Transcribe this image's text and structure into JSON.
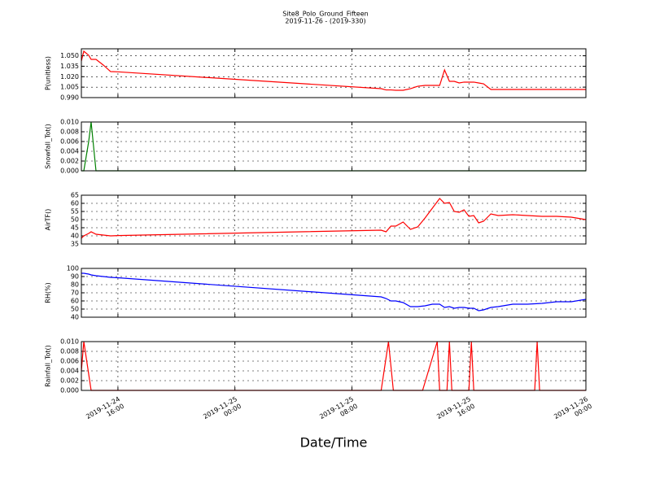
{
  "chart_data": [
    {
      "type": "line",
      "title": "Site8_Polo_Ground_Fifteen",
      "subtitle": "2019-11-26 - (2019-330)",
      "ylabel": "P(unitless)",
      "color": "#ff0000",
      "grid": true,
      "x": [
        "2019-11-24 13:30",
        "2019-11-24 13:40",
        "2019-11-24 14:00",
        "2019-11-24 14:10",
        "2019-11-24 14:30",
        "2019-11-24 15:00",
        "2019-11-24 15:30",
        "2019-11-24 16:00",
        "2019-11-25 10:00",
        "2019-11-25 10:20",
        "2019-11-25 10:40",
        "2019-11-25 11:00",
        "2019-11-25 11:30",
        "2019-11-25 12:00",
        "2019-11-25 12:30",
        "2019-11-25 13:00",
        "2019-11-25 13:30",
        "2019-11-25 14:00",
        "2019-11-25 14:20",
        "2019-11-25 14:40",
        "2019-11-25 15:00",
        "2019-11-25 15:20",
        "2019-11-25 15:40",
        "2019-11-25 16:00",
        "2019-11-25 16:20",
        "2019-11-25 16:40",
        "2019-11-25 17:00",
        "2019-11-25 17:30",
        "2019-11-25 18:00",
        "2019-11-25 19:00",
        "2019-11-25 20:00",
        "2019-11-25 21:00",
        "2019-11-25 22:00",
        "2019-11-25 23:00",
        "2019-11-26 00:00"
      ],
      "values": [
        1.0425,
        1.0565,
        1.0507,
        1.0448,
        1.0448,
        1.0367,
        1.0273,
        1.027,
        1.0028,
        1.001,
        1.001,
        1.0005,
        1.0005,
        1.0028,
        1.0063,
        1.0075,
        1.0075,
        1.0075,
        1.0297,
        1.0133,
        1.0133,
        1.011,
        1.0122,
        1.0122,
        1.0122,
        1.011,
        1.0098,
        1.0017,
        1.0017,
        1.0017,
        1.0017,
        1.0017,
        1.0017,
        1.0017,
        1.0017
      ],
      "xlim": [
        "2019-11-24 13:30",
        "2019-11-26 00:00"
      ],
      "xticks": [
        "2019-11-24 16:00",
        "2019-11-25 00:00",
        "2019-11-25 08:00",
        "2019-11-25 16:00",
        "2019-11-26 00:00"
      ],
      "ylim": [
        0.99,
        1.06
      ],
      "yticks": [
        {
          "value": 0.99,
          "label": "0.990"
        },
        1.005,
        {
          "value": 1.02,
          "label": "1.020"
        },
        1.035,
        {
          "value": 1.05,
          "label": "1.050"
        }
      ]
    },
    {
      "type": "line",
      "ylabel": "Snowfall_Tot()",
      "color": "#008000",
      "grid": true,
      "x": [
        "2019-11-24 13:30",
        "2019-11-24 13:40",
        "2019-11-24 14:00",
        "2019-11-24 14:10",
        "2019-11-24 14:30",
        "2019-11-24 15:00",
        "2019-11-24 16:00",
        "2019-11-25 12:00",
        "2019-11-26 00:00"
      ],
      "values": [
        0,
        0,
        0.006,
        0.01,
        0,
        0,
        0,
        0,
        0
      ],
      "xlim": [
        "2019-11-24 13:30",
        "2019-11-26 00:00"
      ],
      "xticks": [
        "2019-11-24 16:00",
        "2019-11-25 00:00",
        "2019-11-25 08:00",
        "2019-11-25 16:00",
        "2019-11-26 00:00"
      ],
      "ylim": [
        0,
        0.01
      ],
      "yticks": [
        {
          "value": 0,
          "label": "0.000"
        },
        0.002,
        0.004,
        0.006,
        0.008,
        {
          "value": 0.01,
          "label": "0.010"
        }
      ]
    },
    {
      "type": "line",
      "ylabel": "AirTF()",
      "color": "#ff0000",
      "grid": true,
      "x": [
        "2019-11-24 13:30",
        "2019-11-24 13:40",
        "2019-11-24 14:00",
        "2019-11-24 14:10",
        "2019-11-24 14:30",
        "2019-11-24 15:00",
        "2019-11-24 15:30",
        "2019-11-24 16:00",
        "2019-11-25 10:00",
        "2019-11-25 10:20",
        "2019-11-25 10:40",
        "2019-11-25 11:00",
        "2019-11-25 11:30",
        "2019-11-25 12:00",
        "2019-11-25 12:30",
        "2019-11-25 13:00",
        "2019-11-25 13:30",
        "2019-11-25 14:00",
        "2019-11-25 14:20",
        "2019-11-25 14:40",
        "2019-11-25 15:00",
        "2019-11-25 15:20",
        "2019-11-25 15:40",
        "2019-11-25 16:00",
        "2019-11-25 16:20",
        "2019-11-25 16:40",
        "2019-11-25 17:00",
        "2019-11-25 17:30",
        "2019-11-25 18:00",
        "2019-11-25 19:00",
        "2019-11-25 20:00",
        "2019-11-25 21:00",
        "2019-11-25 22:00",
        "2019-11-25 23:00",
        "2019-11-26 00:00"
      ],
      "values": [
        38.5,
        40,
        41.5,
        42.5,
        41,
        40.5,
        40,
        40.2,
        43.5,
        42.5,
        46,
        46,
        48.5,
        44,
        45.5,
        51,
        57,
        63,
        60,
        60.5,
        55,
        54.5,
        56,
        52,
        52.5,
        48,
        49,
        53.5,
        52.5,
        53,
        52.5,
        52,
        52,
        51.5,
        50
      ],
      "xlim": [
        "2019-11-24 13:30",
        "2019-11-26 00:00"
      ],
      "xticks": [
        "2019-11-24 16:00",
        "2019-11-25 00:00",
        "2019-11-25 08:00",
        "2019-11-25 16:00",
        "2019-11-26 00:00"
      ],
      "ylim": [
        35,
        65
      ],
      "yticks": [
        35,
        40,
        45,
        50,
        55,
        60,
        65
      ]
    },
    {
      "type": "line",
      "ylabel": "RH(%)",
      "color": "#0000ff",
      "grid": true,
      "x": [
        "2019-11-24 13:30",
        "2019-11-24 13:40",
        "2019-11-24 14:00",
        "2019-11-24 14:10",
        "2019-11-24 14:30",
        "2019-11-24 15:00",
        "2019-11-24 15:30",
        "2019-11-24 16:00",
        "2019-11-25 10:00",
        "2019-11-25 10:20",
        "2019-11-25 10:40",
        "2019-11-25 11:00",
        "2019-11-25 11:30",
        "2019-11-25 12:00",
        "2019-11-25 12:30",
        "2019-11-25 13:00",
        "2019-11-25 13:30",
        "2019-11-25 14:00",
        "2019-11-25 14:20",
        "2019-11-25 14:40",
        "2019-11-25 15:00",
        "2019-11-25 15:20",
        "2019-11-25 15:40",
        "2019-11-25 16:00",
        "2019-11-25 16:20",
        "2019-11-25 16:40",
        "2019-11-25 17:00",
        "2019-11-25 17:30",
        "2019-11-25 18:00",
        "2019-11-25 19:00",
        "2019-11-25 20:00",
        "2019-11-25 21:00",
        "2019-11-25 22:00",
        "2019-11-25 23:00",
        "2019-11-26 00:00"
      ],
      "values": [
        94,
        94,
        93,
        92,
        91,
        90,
        89,
        88.5,
        65,
        63,
        60,
        60,
        58,
        53,
        53,
        54,
        56,
        56,
        52,
        53,
        51,
        52,
        52,
        51,
        51,
        48,
        49,
        52,
        53,
        56,
        56,
        57,
        59,
        59,
        62
      ],
      "xlim": [
        "2019-11-24 13:30",
        "2019-11-26 00:00"
      ],
      "xticks": [
        "2019-11-24 16:00",
        "2019-11-25 00:00",
        "2019-11-25 08:00",
        "2019-11-25 16:00",
        "2019-11-26 00:00"
      ],
      "ylim": [
        40,
        100
      ],
      "yticks": [
        40,
        50,
        60,
        70,
        80,
        90,
        100
      ]
    },
    {
      "type": "line",
      "ylabel": "Rainfall_Tot()",
      "xlabel": "Date/Time",
      "color": "#ff0000",
      "grid": true,
      "x": [
        "2019-11-24 13:30",
        "2019-11-24 13:40",
        "2019-11-24 14:10",
        "2019-11-25 10:00",
        "2019-11-25 10:30",
        "2019-11-25 10:50",
        "2019-11-25 12:50",
        "2019-11-25 13:50",
        "2019-11-25 14:00",
        "2019-11-25 14:30",
        "2019-11-25 14:40",
        "2019-11-25 14:50",
        "2019-11-25 16:00",
        "2019-11-25 16:10",
        "2019-11-25 16:20",
        "2019-11-25 20:30",
        "2019-11-25 20:40",
        "2019-11-25 20:50",
        "2019-11-26 00:00"
      ],
      "values": [
        0.004,
        0.01,
        0,
        0,
        0.01,
        0,
        0,
        0.01,
        0,
        0,
        0.01,
        0,
        0,
        0.01,
        0,
        0,
        0.01,
        0,
        0
      ],
      "xlim": [
        "2019-11-24 13:30",
        "2019-11-26 00:00"
      ],
      "xticks": [
        {
          "value": "2019-11-24 16:00",
          "label": "2019-11-24\n16:00"
        },
        {
          "value": "2019-11-25 00:00",
          "label": "2019-11-25\n00:00"
        },
        {
          "value": "2019-11-25 08:00",
          "label": "2019-11-25\n08:00"
        },
        {
          "value": "2019-11-25 16:00",
          "label": "2019-11-25\n16:00"
        },
        {
          "value": "2019-11-26 00:00",
          "label": "2019-11-26\n00:00"
        }
      ],
      "ylim": [
        0,
        0.01
      ],
      "yticks": [
        {
          "value": 0,
          "label": "0.000"
        },
        0.002,
        0.004,
        0.006,
        0.008,
        {
          "value": 0.01,
          "label": "0.010"
        }
      ]
    }
  ]
}
